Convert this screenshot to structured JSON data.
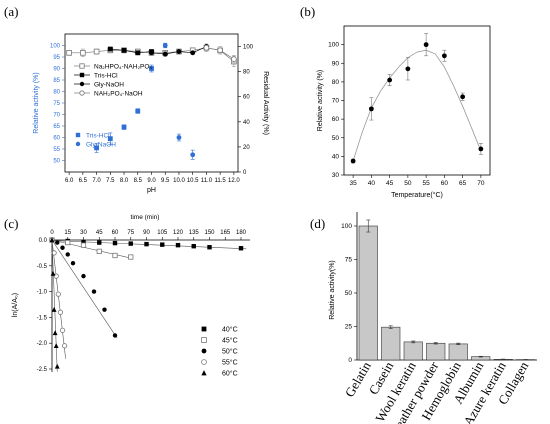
{
  "chart_data": [
    {
      "panel_label": "(a)",
      "type": "line",
      "xlabel": "pH",
      "ylabel": "Relative activity (%)",
      "ylabel_right": "Residual Activity (%)",
      "xlim": [
        6.0,
        12.0
      ],
      "ylim": [
        45,
        105
      ],
      "ylim_right": [
        0,
        110
      ],
      "x_ticks": [
        6.0,
        6.5,
        7.0,
        7.5,
        8.0,
        8.5,
        9.0,
        9.5,
        10.0,
        10.5,
        11.0,
        11.5,
        12.0
      ],
      "y_ticks": [
        50,
        55,
        60,
        65,
        70,
        75,
        80,
        85,
        90,
        95,
        100
      ],
      "y_ticks_right": [
        0,
        20,
        40,
        60,
        80,
        100
      ],
      "colors": {
        "blue": "#2f6fd6",
        "black": "#000000",
        "gray": "#777777"
      },
      "series": [
        {
          "name": "Tris-HCl",
          "axis": "left",
          "color": "blue",
          "marker": "square",
          "line": false,
          "x": [
            7.0,
            7.5,
            8.0,
            8.5,
            9.0
          ],
          "y": [
            55.5,
            59.5,
            64.5,
            71.5,
            90.0
          ],
          "err": [
            2.0,
            2.5,
            1.0,
            1.0,
            1.5
          ]
        },
        {
          "name": "Gly-NaOH",
          "axis": "left",
          "color": "blue",
          "marker": "circle",
          "line": false,
          "x": [
            9.5,
            10.0,
            10.5
          ],
          "y": [
            100.0,
            60.0,
            52.5
          ],
          "err": [
            1.0,
            1.5,
            2.0
          ]
        },
        {
          "name": "Na₂HPO₄-NaH₂PO₄",
          "axis": "right",
          "color": "gray",
          "marker": "open-square",
          "line": true,
          "x": [
            6.0,
            6.5,
            7.0,
            7.5,
            8.0,
            8.5,
            9.0,
            9.5,
            10.0,
            10.5,
            11.0,
            11.5,
            12.0
          ],
          "y": [
            95,
            95,
            96,
            97,
            97,
            96,
            95,
            95,
            96,
            97,
            99,
            97,
            88
          ],
          "err": [
            2,
            3,
            2,
            2,
            2,
            2,
            2,
            2,
            2,
            2,
            3,
            3,
            4
          ]
        },
        {
          "name": "Tris-HCl",
          "axis": "right",
          "color": "black",
          "marker": "square",
          "line": true,
          "x": [
            7.5,
            8.0,
            8.5,
            9.0
          ],
          "y": [
            98,
            97,
            95,
            96
          ],
          "err": [
            1,
            1,
            1,
            1
          ]
        },
        {
          "name": "Gly-NaOH",
          "axis": "right",
          "color": "black",
          "marker": "circle",
          "line": true,
          "x": [
            9.0,
            9.5,
            10.0,
            10.5,
            11.0
          ],
          "y": [
            95,
            94,
            96,
            95,
            100
          ],
          "err": [
            1,
            2,
            1,
            1,
            2
          ]
        },
        {
          "name": "NAH₂PO₄-NaOH",
          "axis": "right",
          "color": "gray",
          "marker": "open-circle",
          "line": true,
          "x": [
            11.0,
            11.5,
            12.0
          ],
          "y": [
            99,
            97,
            90
          ],
          "err": [
            2,
            2,
            3
          ]
        }
      ],
      "legend_top": [
        "Na₂HPO₄-NAH₂PO₄",
        "Tris-HCl",
        "Gly-NaOH",
        "NAH₂PO₄-NaOH"
      ],
      "legend_bottom": [
        "Tris-HCl",
        "Gly-NaOH"
      ]
    },
    {
      "panel_label": "(b)",
      "type": "scatter",
      "xlabel": "Temperature(°C)",
      "ylabel": "Relative activity (%)",
      "xlim": [
        32.5,
        72.5
      ],
      "ylim": [
        30,
        110
      ],
      "x_ticks": [
        35,
        40,
        45,
        50,
        55,
        60,
        65,
        70
      ],
      "y_ticks": [
        30,
        40,
        50,
        60,
        70,
        80,
        90,
        100
      ],
      "points": {
        "x": [
          35,
          40,
          45,
          50,
          55,
          60,
          65,
          70
        ],
        "y": [
          37.5,
          65.5,
          81.0,
          87.0,
          100.0,
          94.0,
          72.0,
          44.0
        ],
        "err": [
          1,
          6,
          3,
          6,
          6,
          3,
          2,
          3
        ]
      },
      "fit_curve": {
        "x": [
          35,
          37.5,
          40,
          42.5,
          45,
          47.5,
          50,
          52.5,
          55,
          57.5,
          60,
          62.5,
          65,
          67.5,
          70
        ],
        "y": [
          37.5,
          53,
          66,
          75,
          82,
          88,
          93,
          96,
          97,
          95,
          88,
          78,
          67,
          55,
          43
        ]
      }
    },
    {
      "panel_label": "(c)",
      "type": "scatter",
      "xlabel": "time (min)",
      "ylabel": "ln(A/A₀)",
      "xlim": [
        0,
        180
      ],
      "ylim": [
        -2.6,
        0.05
      ],
      "x_ticks": [
        0,
        15,
        30,
        45,
        60,
        75,
        90,
        105,
        120,
        135,
        150,
        165,
        180
      ],
      "y_ticks": [
        0.0,
        -0.5,
        -1.0,
        -1.5,
        -2.0,
        -2.5
      ],
      "y_tick_labels": [
        "0.0",
        "-0.5",
        "-1.0",
        "-1.5",
        "-2.0",
        "-2.5"
      ],
      "series": [
        {
          "name": "40°C",
          "marker": "square",
          "x": [
            0,
            15,
            30,
            45,
            60,
            75,
            90,
            105,
            120,
            135,
            150,
            180
          ],
          "y": [
            0.0,
            -0.02,
            -0.04,
            -0.05,
            -0.06,
            -0.07,
            -0.08,
            -0.09,
            -0.1,
            -0.12,
            -0.14,
            -0.16
          ],
          "fit": [
            [
              0,
              -0.01
            ],
            [
              185,
              -0.17
            ]
          ]
        },
        {
          "name": "45°C",
          "marker": "open-square",
          "x": [
            0,
            15,
            30,
            45,
            60,
            75
          ],
          "y": [
            0.0,
            -0.05,
            -0.1,
            -0.22,
            -0.3,
            -0.33
          ],
          "fit": [
            [
              0,
              0.0
            ],
            [
              77,
              -0.36
            ]
          ]
        },
        {
          "name": "50°C",
          "marker": "circle",
          "x": [
            0,
            5,
            10,
            15,
            20,
            30,
            40,
            50,
            60
          ],
          "y": [
            0.0,
            -0.05,
            -0.15,
            -0.28,
            -0.45,
            -0.7,
            -1.0,
            -1.35,
            -1.85
          ],
          "fit": [
            [
              0,
              0.0
            ],
            [
              62,
              -1.9
            ]
          ]
        },
        {
          "name": "55°C",
          "marker": "open-circle",
          "x": [
            0,
            2,
            4,
            6,
            8,
            10,
            12
          ],
          "y": [
            0.0,
            -0.25,
            -0.7,
            -1.05,
            -1.4,
            -1.75,
            -2.05
          ],
          "fit": [
            [
              0,
              0.0
            ],
            [
              13,
              -2.3
            ]
          ]
        },
        {
          "name": "60°C",
          "marker": "triangle",
          "x": [
            0,
            1,
            2,
            3,
            4,
            5
          ],
          "y": [
            0.0,
            -0.65,
            -1.35,
            -1.8,
            -2.05,
            -2.45
          ],
          "fit": [
            [
              0,
              0.0
            ],
            [
              5,
              -2.55
            ]
          ]
        }
      ]
    },
    {
      "panel_label": "(d)",
      "type": "bar",
      "ylabel": "Relative activity(%)",
      "ylim": [
        0,
        110
      ],
      "y_ticks": [
        0,
        25,
        50,
        75,
        100
      ],
      "categories": [
        "Gelatin",
        "Casein",
        "Wool keratin",
        "Feather powder",
        "Hemoglobin",
        "Albumin",
        "Azure keratin",
        "Collagen"
      ],
      "values": [
        100.0,
        24.5,
        13.5,
        12.5,
        12.0,
        2.5,
        0.5,
        0.3
      ],
      "err": [
        4.5,
        1.0,
        0.7,
        0.6,
        0.6,
        0.3,
        0.2,
        0.1
      ],
      "bar_color": "#c8c8c8"
    }
  ]
}
